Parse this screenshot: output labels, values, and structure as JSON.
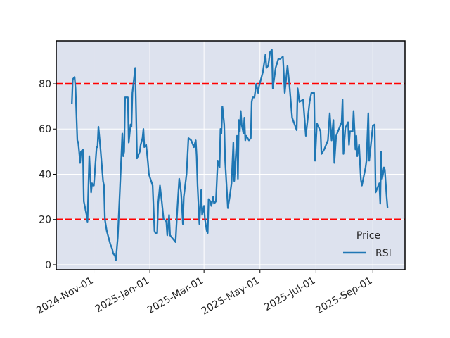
{
  "chart_data": {
    "type": "line",
    "title": "",
    "xlabel": "",
    "ylabel": "",
    "x_origin": "2024-11-01",
    "x_unit": "days since origin",
    "xlim": [
      -41,
      339
    ],
    "ylim": [
      -2.2,
      99
    ],
    "grid": true,
    "background_color": "#dde2ee",
    "x_ticks": [
      {
        "offset": 0,
        "label": "2024-Nov-01"
      },
      {
        "offset": 61,
        "label": "2025-Jan-01"
      },
      {
        "offset": 120,
        "label": "2025-Mar-01"
      },
      {
        "offset": 181,
        "label": "2025-May-01"
      },
      {
        "offset": 242,
        "label": "2025-Jul-01"
      },
      {
        "offset": 304,
        "label": "2025-Sep-01"
      }
    ],
    "y_ticks": [
      {
        "value": 0,
        "label": "0"
      },
      {
        "value": 20,
        "label": "20"
      },
      {
        "value": 40,
        "label": "40"
      },
      {
        "value": 60,
        "label": "60"
      },
      {
        "value": 80,
        "label": "80"
      }
    ],
    "reference_lines": [
      {
        "value": 80,
        "color": "#ff0000",
        "style": "dashed"
      },
      {
        "value": 20,
        "color": "#ff0000",
        "style": "dashed"
      }
    ],
    "legend": {
      "title": "Price",
      "placement": "bottom-right",
      "entries": [
        {
          "label": "RSI",
          "color": "#1f77b4"
        }
      ]
    },
    "series": [
      {
        "name": "RSI",
        "color": "#1f77b4",
        "x": [
          -24,
          -23,
          -21,
          -20,
          -18,
          -17,
          -16,
          -15,
          -14,
          -12,
          -11,
          -8,
          -7,
          -5,
          -4,
          -3,
          -2,
          -1,
          0,
          3,
          4,
          5,
          7,
          10,
          11,
          12,
          14,
          16,
          18,
          20,
          21,
          23,
          24,
          26,
          28,
          31,
          32,
          33,
          34,
          37,
          38,
          40,
          41,
          42,
          45,
          47,
          50,
          51,
          53,
          54,
          55,
          57,
          59,
          60,
          64,
          66,
          67,
          69,
          70,
          72,
          74,
          76,
          77,
          79,
          80,
          82,
          83,
          85,
          89,
          91,
          93,
          95,
          96,
          97,
          98,
          101,
          102,
          103,
          106,
          109,
          111,
          112,
          113,
          115,
          117,
          118,
          120,
          121,
          123,
          124,
          125,
          127,
          128,
          130,
          131,
          133,
          134,
          135,
          137,
          138,
          139,
          140,
          142,
          143,
          146,
          148,
          150,
          152,
          153,
          156,
          157,
          158,
          159,
          160,
          161,
          163,
          164,
          165,
          166,
          169,
          171,
          172,
          173,
          175,
          177,
          179,
          180,
          184,
          187,
          188,
          190,
          192,
          194,
          195,
          197,
          198,
          201,
          203,
          206,
          208,
          209,
          211,
          213,
          216,
          221,
          222,
          224,
          228,
          231,
          235,
          237,
          240,
          241,
          243,
          247,
          248,
          251,
          255,
          257,
          259,
          261,
          262,
          264,
          270,
          271,
          272,
          274,
          277,
          278,
          279,
          282,
          283,
          285,
          286,
          287,
          289,
          291,
          292,
          296,
          297,
          299,
          300,
          304,
          306,
          307,
          309,
          311,
          312,
          313,
          314,
          315,
          316,
          317,
          319,
          320
        ],
        "y": [
          71,
          82,
          83,
          78,
          55,
          54,
          50,
          45,
          50,
          51,
          28,
          22,
          19,
          48,
          40,
          32,
          36,
          35,
          35,
          52,
          52,
          61,
          52,
          37,
          35,
          20,
          15,
          12,
          9,
          7,
          5,
          4,
          2,
          12,
          30,
          58,
          48,
          50,
          74,
          74,
          54,
          62,
          61,
          76,
          87,
          47,
          50,
          53,
          56,
          60,
          52,
          53,
          45,
          40,
          35,
          15,
          14,
          14,
          27,
          35,
          28,
          20,
          20,
          19,
          13,
          22,
          13,
          12,
          10,
          25,
          38,
          32,
          26,
          18,
          30,
          40,
          48,
          56,
          55,
          52,
          55,
          48,
          35,
          18,
          33,
          22,
          26,
          20,
          15,
          14,
          29,
          28,
          26,
          30,
          27,
          28,
          37,
          46,
          43,
          60,
          58,
          70,
          62,
          46,
          25,
          30,
          36,
          54,
          37,
          57,
          38,
          64,
          59,
          68,
          62,
          58,
          65,
          55,
          57,
          55,
          56,
          72,
          74,
          74,
          80,
          76,
          79,
          85,
          93,
          87,
          88,
          94,
          95,
          78,
          84,
          87,
          91,
          91,
          92,
          76,
          80,
          88,
          80,
          65,
          59.5,
          78,
          72,
          73,
          57,
          72,
          76,
          76,
          46,
          62.5,
          59,
          49,
          51,
          55,
          67,
          55,
          64,
          45,
          57,
          63,
          73,
          49,
          60.5,
          63,
          53,
          59,
          59,
          68,
          51,
          57,
          48,
          53,
          37.5,
          35,
          43,
          46,
          67,
          46,
          61.5,
          62,
          32,
          34,
          36,
          27,
          50,
          38,
          40,
          43,
          42,
          30,
          25
        ]
      }
    ]
  }
}
